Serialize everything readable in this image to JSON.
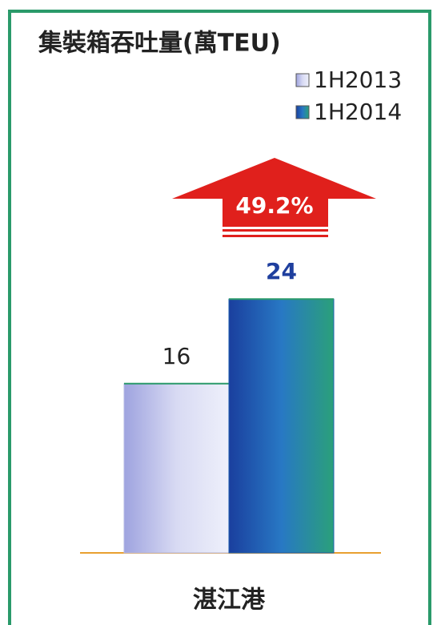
{
  "chart_data": {
    "type": "bar",
    "title": "集裝箱吞吐量(萬TEU)",
    "categories": [
      "湛江港"
    ],
    "series": [
      {
        "name": "1H2013",
        "color": "#b8bce6",
        "values": [
          16
        ]
      },
      {
        "name": "1H2014",
        "color": "#1f5fb0",
        "values": [
          24
        ]
      }
    ],
    "annotation": "49.2%",
    "legend": "top-right"
  }
}
